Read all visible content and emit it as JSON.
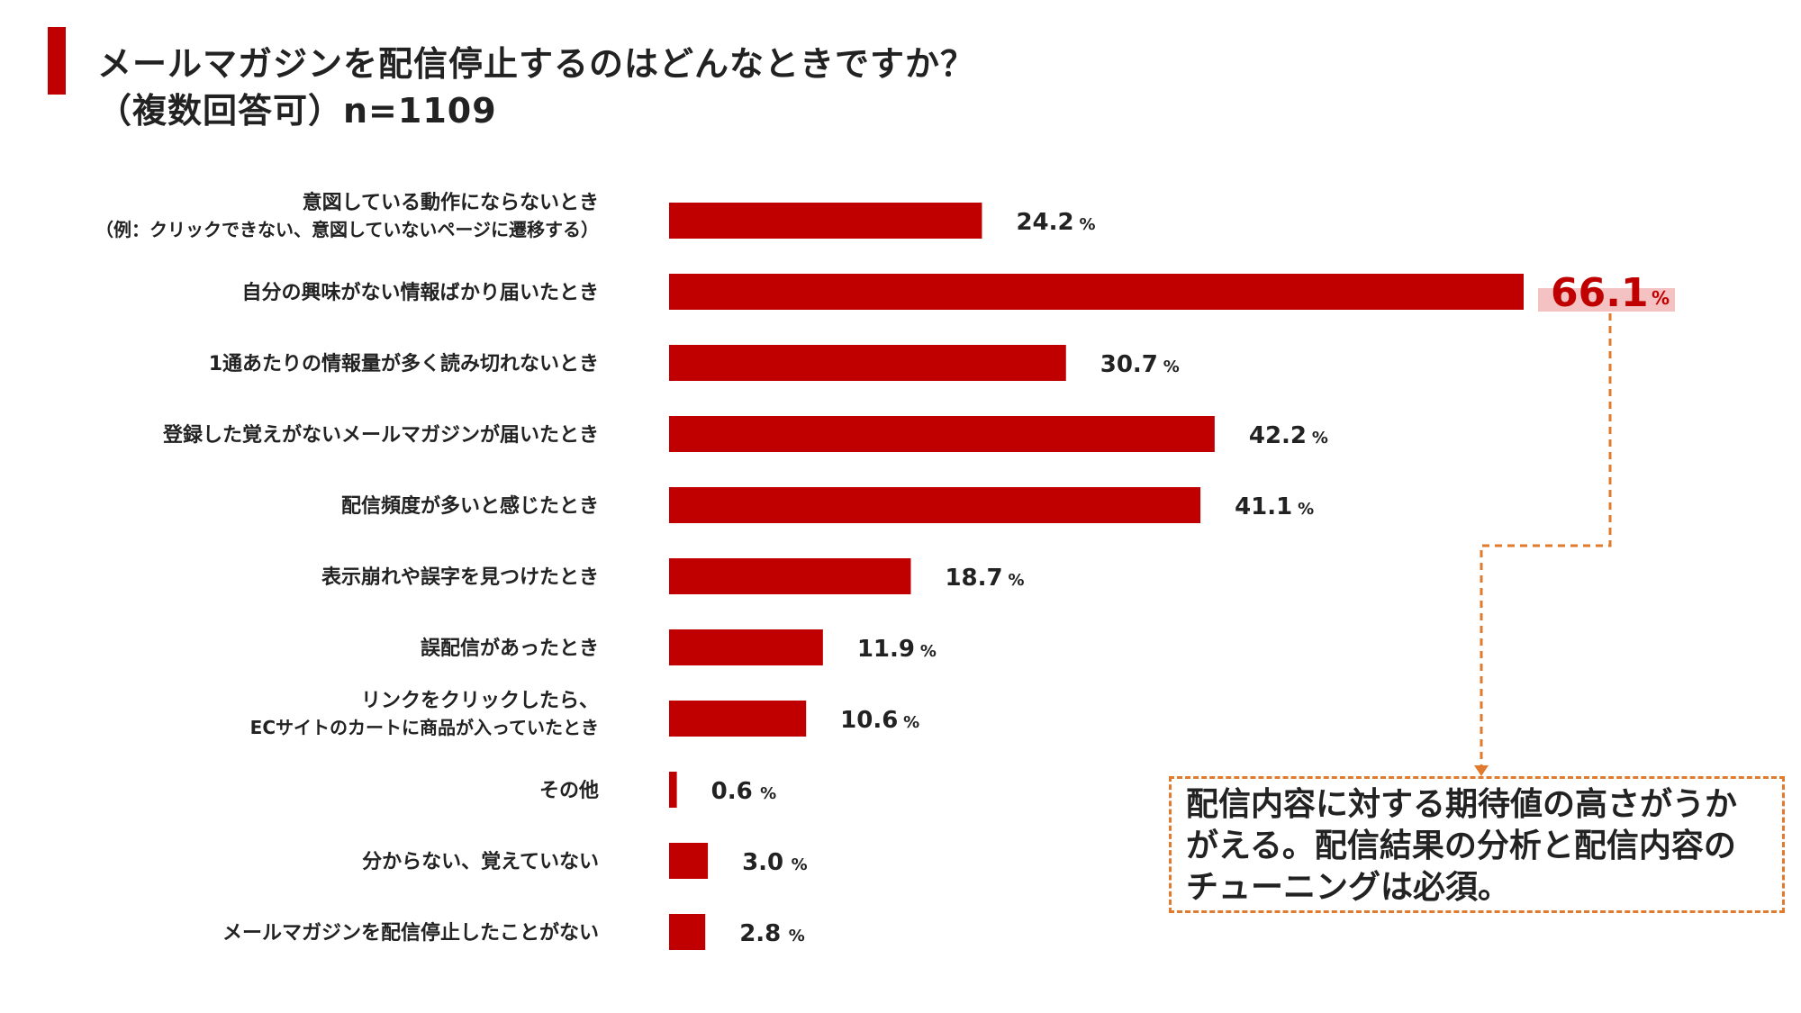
{
  "title": {
    "line1": "メールマガジンを配信停止するのはどんなときですか？",
    "line2": "（複数回答可）n=1109"
  },
  "colors": {
    "bar": "#c00000",
    "highlight_text": "#c00000",
    "highlight_bg": "#f4c2c2",
    "connector": "#e07a2e"
  },
  "chart_data": {
    "type": "bar",
    "orientation": "horizontal",
    "unit": "%",
    "categories": [
      [
        "意図している動作にならないとき",
        "（例：クリックできない、意図していないページに遷移する）"
      ],
      [
        "自分の興味がない情報ばかり届いたとき"
      ],
      [
        "1通あたりの情報量が多く読み切れないとき"
      ],
      [
        "登録した覚えがないメールマガジンが届いたとき"
      ],
      [
        "配信頻度が多いと感じたとき"
      ],
      [
        "表示崩れや誤字を見つけたとき"
      ],
      [
        "誤配信があったとき"
      ],
      [
        "リンクをクリックしたら、",
        "ECサイトのカートに商品が入っていたとき"
      ],
      [
        "その他"
      ],
      [
        "分からない、覚えていない"
      ],
      [
        "メールマガジンを配信停止したことがない"
      ]
    ],
    "values": [
      24.2,
      66.1,
      30.7,
      42.2,
      41.1,
      18.7,
      11.9,
      10.6,
      0.6,
      3.0,
      2.8
    ],
    "value_labels": [
      "24.2",
      "66.1",
      "30.7",
      "42.2",
      "41.1",
      "18.7",
      "11.9",
      "10.6",
      "0.6",
      "3.0",
      "2.8"
    ],
    "highlight_index": 1,
    "xlim": [
      0,
      70
    ],
    "grid": false
  },
  "annotation": {
    "lines": [
      "配信内容に対する期待値の高さがうか",
      "がえる。配信結果の分析と配信内容の",
      "チューニングは必須。"
    ]
  }
}
